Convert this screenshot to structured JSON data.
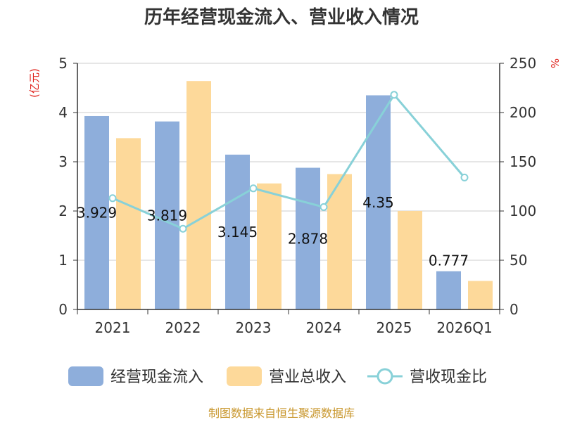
{
  "title": "历年经营现金流入、营业收入情况",
  "units": {
    "left": "(亿元)",
    "right": "%"
  },
  "source": "制图数据来自恒生聚源数据库",
  "colors": {
    "cash_inflow": "#8eaedb",
    "revenue": "#fdd99a",
    "ratio_line": "#88d1d8",
    "axis": "#333333",
    "grid": "#cccccc"
  },
  "chart_data": {
    "type": "bar",
    "categories": [
      "2021",
      "2022",
      "2023",
      "2024",
      "2025",
      "2026Q1"
    ],
    "series": [
      {
        "name": "经营现金流入",
        "axis": "left",
        "kind": "bar",
        "values": [
          3.929,
          3.819,
          3.145,
          2.878,
          4.35,
          0.777
        ],
        "labels": [
          "3.929",
          "3.819",
          "3.145",
          "2.878",
          "4.35",
          "0.777"
        ]
      },
      {
        "name": "营业总收入",
        "axis": "left",
        "kind": "bar",
        "values": [
          3.48,
          4.64,
          2.56,
          2.75,
          2.0,
          0.58
        ]
      },
      {
        "name": "营收现金比",
        "axis": "right",
        "kind": "line",
        "values": [
          113,
          82,
          123,
          104,
          218,
          134
        ]
      }
    ],
    "y_left": {
      "min": 0,
      "max": 5,
      "ticks": [
        "0",
        "1",
        "2",
        "3",
        "4",
        "5"
      ]
    },
    "y_right": {
      "min": 0,
      "max": 250,
      "ticks": [
        "0",
        "50",
        "100",
        "150",
        "200",
        "250"
      ]
    },
    "grid": true,
    "legend_position": "bottom"
  }
}
